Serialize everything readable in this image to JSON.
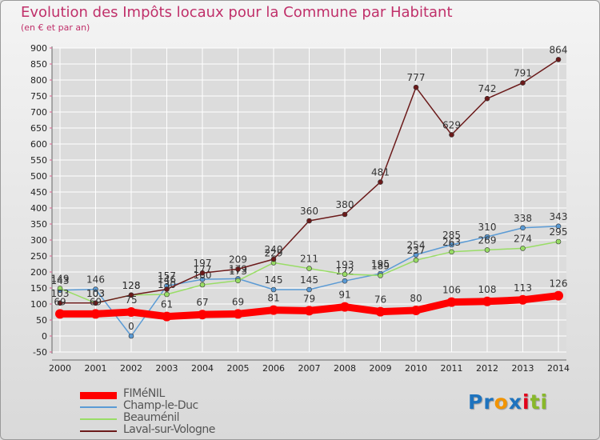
{
  "chart_data": {
    "type": "line",
    "title": "Evolution des Impôts locaux pour la Commune par Habitant",
    "subtitle": "(en € et par an)",
    "x": [
      2000,
      2001,
      2002,
      2003,
      2004,
      2005,
      2006,
      2007,
      2008,
      2009,
      2010,
      2011,
      2012,
      2013,
      2014
    ],
    "ylim": [
      -50,
      900
    ],
    "yticks": [
      -50,
      0,
      50,
      100,
      150,
      200,
      250,
      300,
      350,
      400,
      450,
      500,
      550,
      600,
      650,
      700,
      750,
      800,
      850,
      900
    ],
    "series": [
      {
        "name": "FIMéNIL",
        "color": "#ff0000",
        "values": [
          69,
          69,
          75,
          61,
          67,
          69,
          81,
          79,
          91,
          76,
          80,
          106,
          108,
          113,
          126
        ]
      },
      {
        "name": "Champ-le-Duc",
        "color": "#5b9bd5",
        "values": [
          143,
          146,
          0,
          157,
          177,
          179,
          145,
          145,
          172,
          195,
          254,
          285,
          310,
          338,
          343
        ]
      },
      {
        "name": "Beauménil",
        "color": "#99dd66",
        "values": [
          149,
          103,
          128,
          130,
          160,
          173,
          229,
          211,
          193,
          189,
          237,
          263,
          269,
          274,
          295
        ]
      },
      {
        "name": "Laval-sur-Vologne",
        "color": "#6b1a1a",
        "values": [
          103,
          103,
          128,
          146,
          197,
          209,
          240,
          360,
          380,
          481,
          777,
          629,
          742,
          791,
          864
        ]
      }
    ]
  },
  "logo": {
    "parts": [
      "Pr",
      "o",
      "x",
      "i",
      "ti"
    ],
    "colors": [
      "#1e73be",
      "#f29400",
      "#1e73be",
      "#e2001a",
      "#88b82a"
    ]
  }
}
